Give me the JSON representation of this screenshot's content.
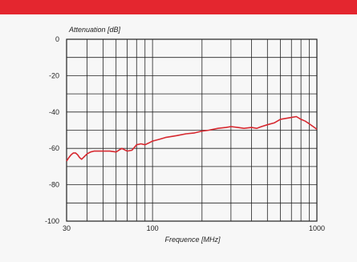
{
  "colors": {
    "header_bar": "#e4262f",
    "series_line": "#d6282f",
    "grid": "#222222",
    "background": "#f7f7f7"
  },
  "chart_data": {
    "type": "line",
    "title": "",
    "xlabel": "Frequence [MHz]",
    "ylabel": "Attenuation [dB]",
    "x_scale": "log",
    "xlim": [
      30,
      1000
    ],
    "ylim": [
      -100,
      0
    ],
    "x_ticks": [
      30,
      100,
      1000
    ],
    "y_ticks": [
      0,
      -20,
      -40,
      -60,
      -80,
      -100
    ],
    "grid": true,
    "legend": "none",
    "series": [
      {
        "x": [
          30,
          31,
          32,
          33,
          34,
          35,
          36,
          37,
          38,
          40,
          42,
          44,
          46,
          50,
          55,
          60,
          65,
          70,
          75,
          80,
          85,
          90,
          95,
          100,
          110,
          120,
          140,
          160,
          180,
          200,
          220,
          250,
          280,
          300,
          330,
          360,
          400,
          430,
          460,
          500,
          550,
          600,
          650,
          700,
          750,
          800,
          850,
          900,
          950,
          1000
        ],
        "y": [
          -67,
          -65,
          -63.5,
          -62.5,
          -62.5,
          -63.5,
          -65,
          -66,
          -65,
          -63,
          -62,
          -61.5,
          -61.5,
          -61.5,
          -61.5,
          -62,
          -60,
          -61.5,
          -61,
          -58,
          -57.5,
          -58,
          -57,
          -56,
          -55,
          -54,
          -53,
          -52,
          -51.5,
          -50.5,
          -50,
          -49,
          -48.5,
          -48,
          -48.5,
          -49,
          -48.5,
          -49,
          -48,
          -47,
          -46,
          -44,
          -43.5,
          -43,
          -42.5,
          -44,
          -45,
          -46.5,
          -48,
          -49.5
        ]
      }
    ]
  }
}
